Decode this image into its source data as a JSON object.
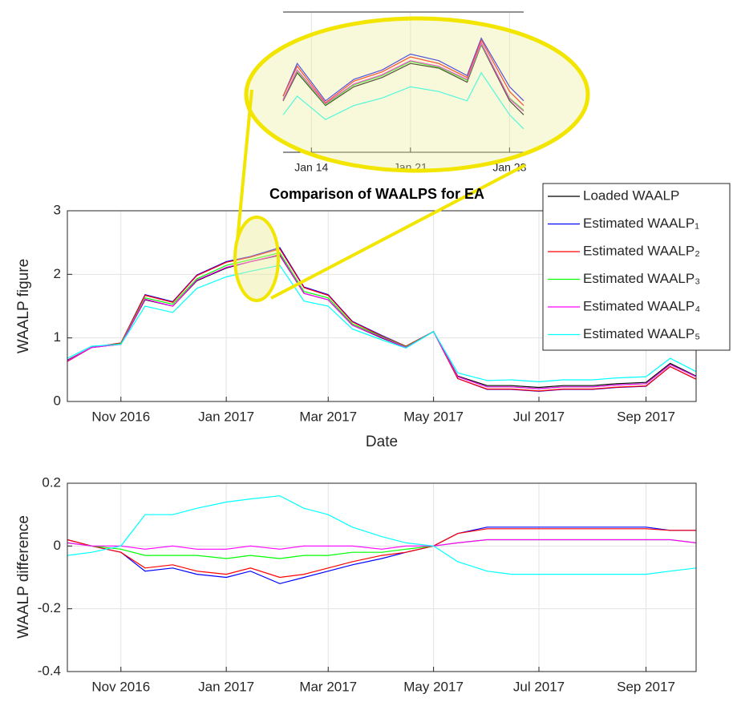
{
  "chart_data": [
    {
      "type": "line",
      "title": "Comparison of WAALPS for EA",
      "xlabel": "Date",
      "ylabel": "WAALP figure",
      "x": [
        "2016-10-01",
        "2016-10-15",
        "2016-11-01",
        "2016-11-15",
        "2016-12-01",
        "2016-12-15",
        "2017-01-01",
        "2017-01-15",
        "2017-02-01",
        "2017-02-15",
        "2017-03-01",
        "2017-03-15",
        "2017-04-01",
        "2017-04-15",
        "2017-05-01",
        "2017-05-15",
        "2017-06-01",
        "2017-06-15",
        "2017-07-01",
        "2017-07-15",
        "2017-08-01",
        "2017-08-15",
        "2017-09-01",
        "2017-09-15",
        "2017-09-30"
      ],
      "series": [
        {
          "name": "Loaded WAALP",
          "color": "#000000",
          "values": [
            0.65,
            0.85,
            0.9,
            1.6,
            1.5,
            1.9,
            2.1,
            2.2,
            2.3,
            1.7,
            1.6,
            1.2,
            1.0,
            0.85,
            1.1,
            0.4,
            0.25,
            0.25,
            0.22,
            0.25,
            0.25,
            0.28,
            0.3,
            0.6,
            0.4
          ]
        },
        {
          "name": "Estimated WAALP₁",
          "color": "#0000ff",
          "values": [
            0.63,
            0.85,
            0.92,
            1.68,
            1.57,
            1.99,
            2.2,
            2.28,
            2.42,
            1.8,
            1.68,
            1.26,
            1.04,
            0.87,
            1.1,
            0.36,
            0.19,
            0.19,
            0.16,
            0.19,
            0.19,
            0.22,
            0.24,
            0.55,
            0.35
          ]
        },
        {
          "name": "Estimated WAALP₂",
          "color": "#ff0000",
          "values": [
            0.63,
            0.85,
            0.92,
            1.67,
            1.56,
            1.98,
            2.19,
            2.27,
            2.4,
            1.79,
            1.67,
            1.25,
            1.03,
            0.87,
            1.1,
            0.36,
            0.195,
            0.195,
            0.165,
            0.195,
            0.195,
            0.225,
            0.245,
            0.55,
            0.35
          ]
        },
        {
          "name": "Estimated WAALP₃",
          "color": "#00ff00",
          "values": [
            0.64,
            0.85,
            0.91,
            1.63,
            1.53,
            1.93,
            2.14,
            2.23,
            2.34,
            1.73,
            1.63,
            1.22,
            1.02,
            0.86,
            1.1,
            0.39,
            0.23,
            0.23,
            0.2,
            0.23,
            0.23,
            0.26,
            0.28,
            0.58,
            0.39
          ]
        },
        {
          "name": "Estimated WAALP₄",
          "color": "#ff00ff",
          "values": [
            0.64,
            0.85,
            0.9,
            1.61,
            1.5,
            1.91,
            2.11,
            2.2,
            2.31,
            1.7,
            1.6,
            1.2,
            1.01,
            0.85,
            1.1,
            0.39,
            0.23,
            0.23,
            0.2,
            0.23,
            0.23,
            0.26,
            0.28,
            0.58,
            0.39
          ]
        },
        {
          "name": "Estimated WAALP₅",
          "color": "#00ffff",
          "values": [
            0.68,
            0.87,
            0.9,
            1.5,
            1.4,
            1.78,
            1.96,
            2.05,
            2.14,
            1.58,
            1.5,
            1.14,
            0.97,
            0.84,
            1.1,
            0.45,
            0.33,
            0.34,
            0.31,
            0.34,
            0.34,
            0.37,
            0.39,
            0.68,
            0.47
          ]
        }
      ],
      "xlim": [
        "2016-10-01",
        "2017-09-30"
      ],
      "xticks": [
        {
          "value": "2016-11-01",
          "label": "Nov 2016"
        },
        {
          "value": "2017-01-01",
          "label": "Jan 2017"
        },
        {
          "value": "2017-03-01",
          "label": "Mar 2017"
        },
        {
          "value": "2017-05-01",
          "label": "May 2017"
        },
        {
          "value": "2017-07-01",
          "label": "Jul 2017"
        },
        {
          "value": "2017-09-01",
          "label": "Sep 2017"
        }
      ],
      "ylim": [
        0,
        3
      ],
      "yticks": [
        0,
        1,
        2,
        3
      ],
      "grid": true,
      "legend": "northeast"
    },
    {
      "type": "line",
      "ylabel": "WAALP difference",
      "x": [
        "2016-10-01",
        "2016-10-15",
        "2016-11-01",
        "2016-11-15",
        "2016-12-01",
        "2016-12-15",
        "2017-01-01",
        "2017-01-15",
        "2017-02-01",
        "2017-02-15",
        "2017-03-01",
        "2017-03-15",
        "2017-04-01",
        "2017-04-15",
        "2017-05-01",
        "2017-05-15",
        "2017-06-01",
        "2017-06-15",
        "2017-07-01",
        "2017-07-15",
        "2017-08-01",
        "2017-08-15",
        "2017-09-01",
        "2017-09-15",
        "2017-09-30"
      ],
      "series": [
        {
          "color": "#0000ff",
          "values": [
            0.02,
            0.0,
            -0.02,
            -0.08,
            -0.07,
            -0.09,
            -0.1,
            -0.08,
            -0.12,
            -0.1,
            -0.08,
            -0.06,
            -0.04,
            -0.02,
            0.0,
            0.04,
            0.06,
            0.06,
            0.06,
            0.06,
            0.06,
            0.06,
            0.06,
            0.05,
            0.05
          ]
        },
        {
          "color": "#ff0000",
          "values": [
            0.02,
            0.0,
            -0.02,
            -0.07,
            -0.06,
            -0.08,
            -0.09,
            -0.07,
            -0.1,
            -0.09,
            -0.07,
            -0.05,
            -0.03,
            -0.02,
            0.0,
            0.04,
            0.055,
            0.055,
            0.055,
            0.055,
            0.055,
            0.055,
            0.055,
            0.05,
            0.05
          ]
        },
        {
          "color": "#00ff00",
          "values": [
            0.01,
            0.0,
            -0.01,
            -0.03,
            -0.03,
            -0.03,
            -0.04,
            -0.03,
            -0.04,
            -0.03,
            -0.03,
            -0.02,
            -0.02,
            -0.01,
            0.0,
            0.01,
            0.02,
            0.02,
            0.02,
            0.02,
            0.02,
            0.02,
            0.02,
            0.02,
            0.01
          ]
        },
        {
          "color": "#ff00ff",
          "values": [
            0.01,
            0.0,
            0.0,
            -0.01,
            0.0,
            -0.01,
            -0.01,
            0.0,
            -0.01,
            0.0,
            0.0,
            0.0,
            -0.01,
            0.0,
            0.0,
            0.01,
            0.02,
            0.02,
            0.02,
            0.02,
            0.02,
            0.02,
            0.02,
            0.02,
            0.01
          ]
        },
        {
          "color": "#00ffff",
          "values": [
            -0.03,
            -0.02,
            0.0,
            0.1,
            0.1,
            0.12,
            0.14,
            0.15,
            0.16,
            0.12,
            0.1,
            0.06,
            0.03,
            0.01,
            0.0,
            -0.05,
            -0.08,
            -0.09,
            -0.09,
            -0.09,
            -0.09,
            -0.09,
            -0.09,
            -0.08,
            -0.07
          ]
        }
      ],
      "xlim": [
        "2016-10-01",
        "2017-09-30"
      ],
      "xticks": [
        {
          "value": "2016-11-01",
          "label": "Nov 2016"
        },
        {
          "value": "2017-01-01",
          "label": "Jan 2017"
        },
        {
          "value": "2017-03-01",
          "label": "Mar 2017"
        },
        {
          "value": "2017-05-01",
          "label": "May 2017"
        },
        {
          "value": "2017-07-01",
          "label": "Jul 2017"
        },
        {
          "value": "2017-09-01",
          "label": "Sep 2017"
        }
      ],
      "ylim": [
        -0.4,
        0.2
      ],
      "yticks": [
        -0.4,
        -0.2,
        0,
        0.2
      ],
      "grid": true
    },
    {
      "type": "line",
      "x": [
        "2017-01-12",
        "2017-01-13",
        "2017-01-15",
        "2017-01-17",
        "2017-01-19",
        "2017-01-21",
        "2017-01-23",
        "2017-01-25",
        "2017-01-26",
        "2017-01-28",
        "2017-01-29"
      ],
      "series": [
        {
          "color": "#000000",
          "values": [
            1.95,
            2.25,
            1.9,
            2.1,
            2.2,
            2.35,
            2.3,
            2.15,
            2.55,
            1.95,
            1.8
          ]
        },
        {
          "color": "#0000ff",
          "values": [
            2.0,
            2.35,
            1.95,
            2.18,
            2.28,
            2.45,
            2.38,
            2.22,
            2.62,
            2.1,
            1.95
          ]
        },
        {
          "color": "#ff0000",
          "values": [
            2.0,
            2.32,
            1.93,
            2.16,
            2.26,
            2.42,
            2.35,
            2.2,
            2.6,
            2.05,
            1.9
          ]
        },
        {
          "color": "#00ff00",
          "values": [
            1.97,
            2.27,
            1.91,
            2.12,
            2.22,
            2.37,
            2.31,
            2.17,
            2.56,
            1.98,
            1.85
          ]
        },
        {
          "color": "#ff00ff",
          "values": [
            1.96,
            2.28,
            1.92,
            2.13,
            2.23,
            2.38,
            2.32,
            2.18,
            2.57,
            1.97,
            1.84
          ]
        },
        {
          "color": "#00ffff",
          "values": [
            1.8,
            2.0,
            1.75,
            1.9,
            1.98,
            2.1,
            2.05,
            1.95,
            2.25,
            1.8,
            1.65
          ]
        }
      ],
      "xlim": [
        "2017-01-12",
        "2017-01-29"
      ],
      "xticks": [
        {
          "value": "2017-01-14",
          "label": "Jan 14"
        },
        {
          "value": "2017-01-21",
          "label": "Jan 21"
        },
        {
          "value": "2017-01-28",
          "label": "Jan 28"
        }
      ],
      "ylim": [
        1.4,
        2.9
      ],
      "grid": true
    }
  ]
}
